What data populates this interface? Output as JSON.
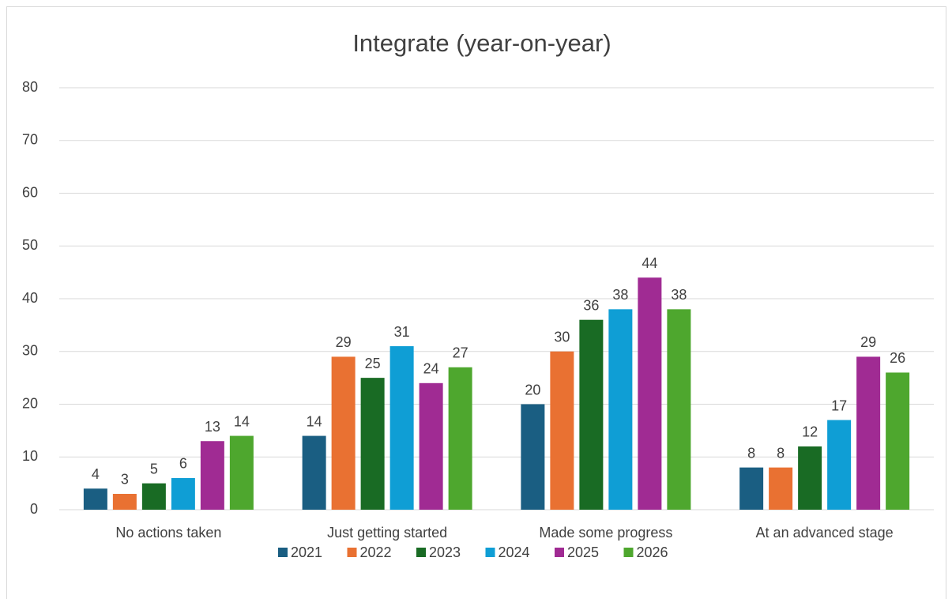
{
  "chart_data": {
    "type": "bar",
    "title": "Integrate (year-on-year)",
    "categories": [
      "No actions taken",
      "Just getting started",
      "Made some progress",
      "At an advanced stage"
    ],
    "series": [
      {
        "name": "2021",
        "color": "#1a5e82",
        "values": [
          4,
          14,
          20,
          8
        ]
      },
      {
        "name": "2022",
        "color": "#e97132",
        "values": [
          3,
          29,
          30,
          8
        ]
      },
      {
        "name": "2023",
        "color": "#196b24",
        "values": [
          5,
          25,
          36,
          12
        ]
      },
      {
        "name": "2024",
        "color": "#0f9ed5",
        "values": [
          6,
          31,
          38,
          17
        ]
      },
      {
        "name": "2025",
        "color": "#a02b93",
        "values": [
          13,
          24,
          44,
          29
        ]
      },
      {
        "name": "2026",
        "color": "#4ea72e",
        "values": [
          14,
          27,
          38,
          26
        ]
      }
    ],
    "ylim": [
      0,
      80
    ],
    "yticks": [
      0,
      10,
      20,
      30,
      40,
      50,
      60,
      70,
      80
    ],
    "grid": true,
    "legend": "bottom"
  }
}
